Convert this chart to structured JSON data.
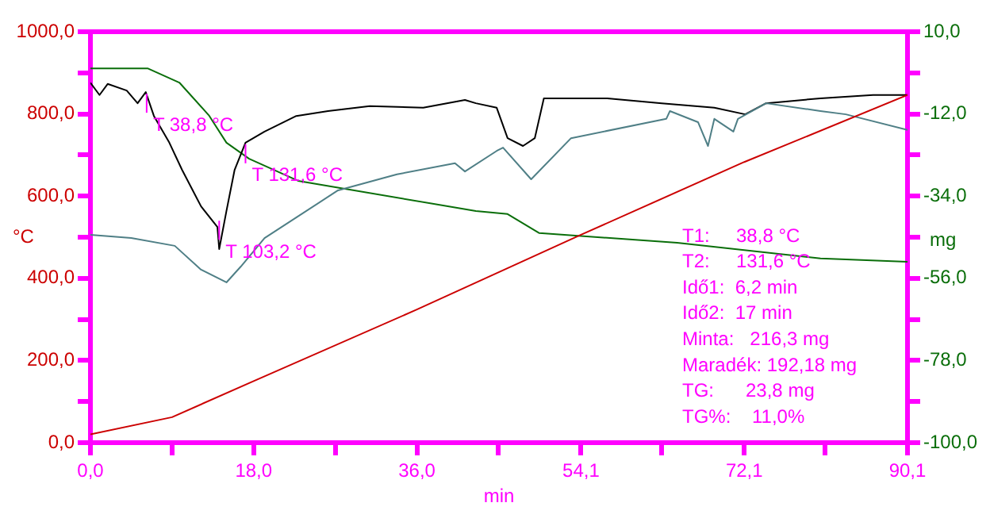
{
  "chart_data": {
    "type": "line",
    "xlabel": "min",
    "ylabel": "°C",
    "y2label": "mg",
    "grid": false,
    "marker": "none",
    "xlim": [
      0,
      90.1
    ],
    "xticks": [
      {
        "value": 0,
        "label": "0,0"
      },
      {
        "value": 9,
        "label": null
      },
      {
        "value": 18,
        "label": "18,0"
      },
      {
        "value": 27,
        "label": null
      },
      {
        "value": 36,
        "label": "36,0"
      },
      {
        "value": 45,
        "label": null
      },
      {
        "value": 54.1,
        "label": "54,1"
      },
      {
        "value": 63,
        "label": null
      },
      {
        "value": 72.1,
        "label": "72,1"
      },
      {
        "value": 81,
        "label": null
      },
      {
        "value": 90.1,
        "label": "90,1"
      }
    ],
    "ylim": [
      0,
      1000
    ],
    "yticks": [
      {
        "value": 0,
        "label": "0,0"
      },
      {
        "value": 100,
        "label": null
      },
      {
        "value": 200,
        "label": "200,0"
      },
      {
        "value": 300,
        "label": null
      },
      {
        "value": 400,
        "label": "400,0"
      },
      {
        "value": 500,
        "label": null
      },
      {
        "value": 600,
        "label": "600,0"
      },
      {
        "value": 700,
        "label": null
      },
      {
        "value": 800,
        "label": "800,0"
      },
      {
        "value": 900,
        "label": null
      },
      {
        "value": 1000,
        "label": "1000,0"
      }
    ],
    "y2lim": [
      -100,
      10
    ],
    "y2ticks": [
      {
        "value": -100,
        "label": "-100,0"
      },
      {
        "value": -89,
        "label": null
      },
      {
        "value": -78,
        "label": "-78,0"
      },
      {
        "value": -67,
        "label": null
      },
      {
        "value": -56,
        "label": "-56,0"
      },
      {
        "value": -45,
        "label": null
      },
      {
        "value": -34,
        "label": "-34,0"
      },
      {
        "value": -23,
        "label": null
      },
      {
        "value": -12,
        "label": "-12,0"
      },
      {
        "value": -1,
        "label": null
      },
      {
        "value": 10,
        "label": "10,0"
      }
    ],
    "series": [
      {
        "color": "#cc0000",
        "x": [
          0,
          9,
          18,
          36,
          54.1,
          72.1,
          90.1
        ],
        "values": [
          20,
          62,
          150,
          324,
          506,
          683,
          846
        ]
      },
      {
        "color": "#4f7f86",
        "x": [
          0,
          4.5,
          9.3,
          12.2,
          15.0,
          16.6,
          19.2,
          22.7,
          27.3,
          33.8,
          40.2,
          41.3,
          44.8,
          45.5,
          48.6,
          53.0,
          63.5,
          63.9,
          67.0,
          68.1,
          68.8,
          70.9,
          71.4,
          74.5,
          80.5,
          83.3,
          90.1
        ],
        "values": [
          506,
          498,
          479,
          421,
          390,
          429,
          498,
          548,
          614,
          653,
          680,
          660,
          710,
          718,
          641,
          741,
          788,
          807,
          780,
          722,
          788,
          757,
          788,
          826,
          807,
          799,
          761
        ]
      },
      {
        "color": "#000000",
        "x": [
          0,
          1.0,
          1.9,
          4.0,
          5.2,
          6.1,
          7.0,
          8.7,
          10.1,
          12.2,
          14.0,
          14.2,
          15.0,
          15.9,
          17.1,
          19.2,
          22.7,
          26.2,
          30.8,
          36.7,
          41.3,
          42.5,
          44.8,
          46.0,
          47.7,
          49.0,
          50.0,
          57.0,
          63.0,
          68.8,
          72.2,
          74.5,
          80.5,
          86.3,
          90.1
        ],
        "values": [
          876,
          846,
          873,
          857,
          826,
          853,
          795,
          730,
          664,
          575,
          525,
          471,
          564,
          664,
          730,
          757,
          795,
          807,
          819,
          815,
          834,
          826,
          815,
          741,
          722,
          741,
          838,
          838,
          826,
          815,
          799,
          826,
          838,
          846,
          846
        ]
      },
      {
        "color": "#0a6e0a",
        "axis": "y2",
        "x": [
          0,
          6.3,
          9.8,
          13.1,
          15.0,
          17.5,
          22.9,
          42.5,
          46.0,
          49.5,
          64.7,
          80.5,
          90.1
        ],
        "values": [
          0.2,
          0.2,
          -3.6,
          -12.5,
          -19.7,
          -24.0,
          -29.9,
          -38.0,
          -38.8,
          -43.9,
          -46.5,
          -50.7,
          -51.6
        ]
      }
    ],
    "annotations": [
      {
        "text": "T 38,8 °C",
        "x": 6.2,
        "y": 826
      },
      {
        "text": "T 131,6 °C",
        "x": 17.1,
        "y": 703
      },
      {
        "text": "T 103,2 °C",
        "x": 14.2,
        "y": 517
      },
      "T1:     38,8 °C",
      "T2:     131,6 °C",
      "Idő1:  6,2 min",
      "Idő2:  17 min",
      "Minta:   216,3 mg",
      "Maradék: 192,18 mg",
      "TG:      23,8 mg",
      "TG%:    11,0%"
    ]
  }
}
